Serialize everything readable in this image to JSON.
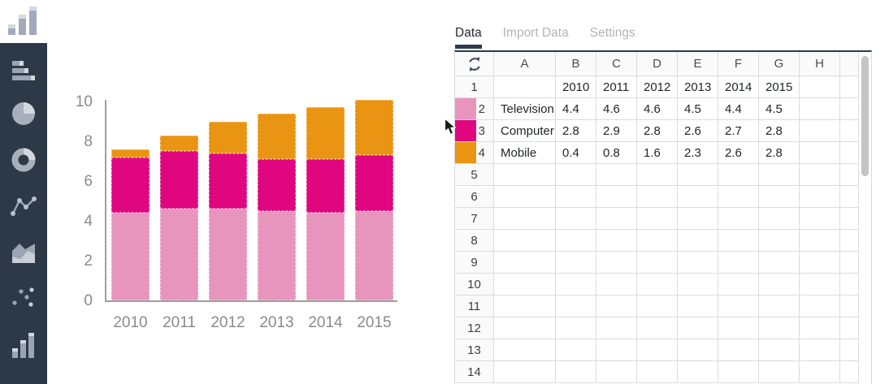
{
  "app": {
    "logo": "column-chart-logo"
  },
  "sidebar": {
    "items": [
      {
        "name": "horizontal-bar-chart"
      },
      {
        "name": "pie-chart"
      },
      {
        "name": "donut-chart"
      },
      {
        "name": "line-chart"
      },
      {
        "name": "area-chart"
      },
      {
        "name": "scatter-plot"
      },
      {
        "name": "column-chart"
      }
    ]
  },
  "tabs": {
    "items": [
      {
        "label": "Data",
        "active": true
      },
      {
        "label": "Import Data",
        "active": false
      },
      {
        "label": "Settings",
        "active": false
      }
    ]
  },
  "chart_data": {
    "type": "bar",
    "stacked": true,
    "categories": [
      "2010",
      "2011",
      "2012",
      "2013",
      "2014",
      "2015"
    ],
    "series": [
      {
        "name": "Television",
        "color": "#e895bd",
        "values": [
          4.4,
          4.6,
          4.6,
          4.5,
          4.4,
          4.5
        ]
      },
      {
        "name": "Computer",
        "color": "#e0067f",
        "values": [
          2.8,
          2.9,
          2.8,
          2.6,
          2.7,
          2.8
        ]
      },
      {
        "name": "Mobile",
        "color": "#ea9413",
        "values": [
          0.4,
          0.8,
          1.6,
          2.3,
          2.6,
          2.8
        ]
      }
    ],
    "title": "",
    "xlabel": "",
    "ylabel": "",
    "ylim": [
      0,
      10
    ],
    "yticks": [
      0,
      2,
      4,
      6,
      8,
      10
    ],
    "grid": false,
    "legend": "none"
  },
  "spreadsheet": {
    "column_headers": [
      "A",
      "B",
      "C",
      "D",
      "E",
      "F",
      "G",
      "H"
    ],
    "visible_row_count": 14,
    "rows": [
      {
        "n": 1,
        "swatch": null,
        "cells": [
          "",
          "2010",
          "2011",
          "2012",
          "2013",
          "2014",
          "2015",
          ""
        ]
      },
      {
        "n": 2,
        "swatch": "#e895bd",
        "cells": [
          "Television",
          "4.4",
          "4.6",
          "4.6",
          "4.5",
          "4.4",
          "4.5",
          ""
        ]
      },
      {
        "n": 3,
        "swatch": "#e0067f",
        "cells": [
          "Computer",
          "2.8",
          "2.9",
          "2.8",
          "2.6",
          "2.7",
          "2.8",
          ""
        ]
      },
      {
        "n": 4,
        "swatch": "#ea9413",
        "cells": [
          "Mobile",
          "0.4",
          "0.8",
          "1.6",
          "2.3",
          "2.6",
          "2.8",
          ""
        ]
      }
    ]
  }
}
